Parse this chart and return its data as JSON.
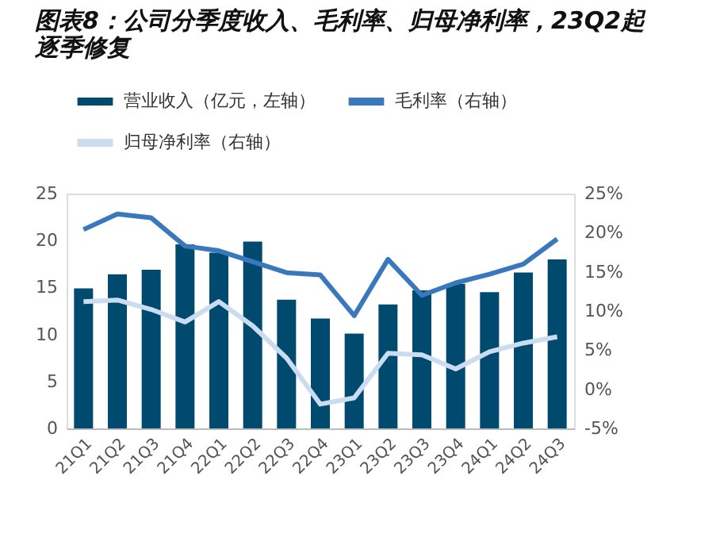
{
  "chart_data": {
    "type": "bar",
    "title": "图表8：公司分季度收入、毛利率、归母净利率，23Q2起逐季修复",
    "categories": [
      "21Q1",
      "21Q2",
      "21Q3",
      "21Q4",
      "22Q1",
      "22Q2",
      "22Q3",
      "22Q4",
      "23Q1",
      "23Q2",
      "23Q3",
      "23Q4",
      "24Q1",
      "24Q2",
      "24Q3"
    ],
    "series": [
      {
        "name": "营业收入（亿元，左轴）",
        "color": "#004a70",
        "values": [
          14.9,
          16.4,
          16.9,
          19.6,
          18.7,
          19.9,
          13.7,
          11.7,
          10.1,
          13.2,
          14.7,
          15.4,
          14.5,
          16.6,
          18.0
        ]
      },
      {
        "name": "毛利率（右轴）",
        "type": "line",
        "axis": "y2",
        "color": "#3a78bd",
        "values": [
          20.4,
          22.4,
          21.9,
          18.3,
          17.7,
          16.3,
          14.9,
          14.6,
          9.4,
          16.6,
          12.0,
          13.6,
          14.7,
          16.0,
          19.2
        ]
      },
      {
        "name": "归母净利率（右轴）",
        "type": "line",
        "axis": "y2",
        "color": "#c9dcf0",
        "values": [
          11.2,
          11.4,
          10.2,
          8.6,
          11.2,
          8.1,
          4.0,
          -1.9,
          -1.1,
          4.6,
          4.4,
          2.6,
          4.8,
          5.9,
          6.7
        ]
      }
    ],
    "ylim": [
      0,
      25
    ],
    "yticks": [
      0,
      5,
      10,
      15,
      20,
      25
    ],
    "y2lim": [
      -5,
      25
    ],
    "y2ticks": [
      {
        "value": -5,
        "label": "-5%"
      },
      {
        "value": 0,
        "label": "0%"
      },
      {
        "value": 5,
        "label": "5%"
      },
      {
        "value": 10,
        "label": "10%"
      },
      {
        "value": 15,
        "label": "15%"
      },
      {
        "value": 20,
        "label": "20%"
      },
      {
        "value": 25,
        "label": "25%"
      }
    ],
    "legend": "top",
    "grid": false,
    "marker": "none",
    "line_style": "solid"
  }
}
